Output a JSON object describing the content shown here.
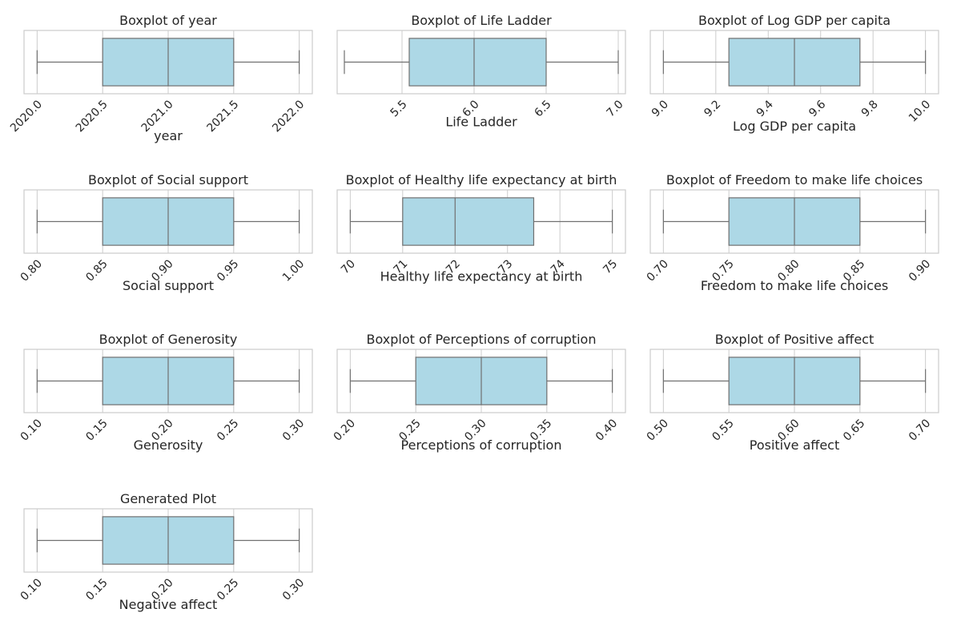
{
  "colors": {
    "box_fill": "#add8e6",
    "box_edge": "#707070",
    "grid": "#cccccc",
    "frame": "#cccccc",
    "text": "#262626",
    "background": "#ffffff"
  },
  "chart_data": [
    {
      "type": "boxplot",
      "title": "Boxplot of year",
      "xlabel": "year",
      "xlim": [
        2019.9,
        2022.1
      ],
      "ticks": [
        2020.0,
        2020.5,
        2021.0,
        2021.5,
        2022.0
      ],
      "tick_labels": [
        "2020.0",
        "2020.5",
        "2021.0",
        "2021.5",
        "2022.0"
      ],
      "min": 2020.0,
      "q1": 2020.5,
      "median": 2021.0,
      "q3": 2021.5,
      "max": 2022.0,
      "grid": true,
      "orientation": "horizontal"
    },
    {
      "type": "boxplot",
      "title": "Boxplot of Life Ladder",
      "xlabel": "Life Ladder",
      "xlim": [
        5.05,
        7.05
      ],
      "ticks": [
        5.5,
        6.0,
        6.5,
        7.0
      ],
      "tick_labels": [
        "5.5",
        "6.0",
        "6.5",
        "7.0"
      ],
      "min": 5.1,
      "q1": 5.55,
      "median": 6.0,
      "q3": 6.5,
      "max": 7.0,
      "grid": true,
      "orientation": "horizontal"
    },
    {
      "type": "boxplot",
      "title": "Boxplot of Log GDP per capita",
      "xlabel": "Log GDP per capita",
      "xlim": [
        8.95,
        10.05
      ],
      "ticks": [
        9.0,
        9.2,
        9.4,
        9.6,
        9.8,
        10.0
      ],
      "tick_labels": [
        "9.0",
        "9.2",
        "9.4",
        "9.6",
        "9.8",
        "10.0"
      ],
      "min": 9.0,
      "q1": 9.25,
      "median": 9.5,
      "q3": 9.75,
      "max": 10.0,
      "grid": true,
      "orientation": "horizontal"
    },
    {
      "type": "boxplot",
      "title": "Boxplot of Social support",
      "xlabel": "Social support",
      "xlim": [
        0.79,
        1.01
      ],
      "ticks": [
        0.8,
        0.85,
        0.9,
        0.95,
        1.0
      ],
      "tick_labels": [
        "0.80",
        "0.85",
        "0.90",
        "0.95",
        "1.00"
      ],
      "min": 0.8,
      "q1": 0.85,
      "median": 0.9,
      "q3": 0.95,
      "max": 1.0,
      "grid": true,
      "orientation": "horizontal"
    },
    {
      "type": "boxplot",
      "title": "Boxplot of Healthy life expectancy at birth",
      "xlabel": "Healthy life expectancy at birth",
      "xlim": [
        69.75,
        75.25
      ],
      "ticks": [
        70,
        71,
        72,
        73,
        74,
        75
      ],
      "tick_labels": [
        "70",
        "71",
        "72",
        "73",
        "74",
        "75"
      ],
      "min": 70,
      "q1": 71,
      "median": 72,
      "q3": 73.5,
      "max": 75,
      "grid": true,
      "orientation": "horizontal"
    },
    {
      "type": "boxplot",
      "title": "Boxplot of Freedom to make life choices",
      "xlabel": "Freedom to make life choices",
      "xlim": [
        0.69,
        0.91
      ],
      "ticks": [
        0.7,
        0.75,
        0.8,
        0.85,
        0.9
      ],
      "tick_labels": [
        "0.70",
        "0.75",
        "0.80",
        "0.85",
        "0.90"
      ],
      "min": 0.7,
      "q1": 0.75,
      "median": 0.8,
      "q3": 0.85,
      "max": 0.9,
      "grid": true,
      "orientation": "horizontal"
    },
    {
      "type": "boxplot",
      "title": "Boxplot of Generosity",
      "xlabel": "Generosity",
      "xlim": [
        0.09,
        0.31
      ],
      "ticks": [
        0.1,
        0.15,
        0.2,
        0.25,
        0.3
      ],
      "tick_labels": [
        "0.10",
        "0.15",
        "0.20",
        "0.25",
        "0.30"
      ],
      "min": 0.1,
      "q1": 0.15,
      "median": 0.2,
      "q3": 0.25,
      "max": 0.3,
      "grid": true,
      "orientation": "horizontal"
    },
    {
      "type": "boxplot",
      "title": "Boxplot of Perceptions of corruption",
      "xlabel": "Perceptions of corruption",
      "xlim": [
        0.19,
        0.41
      ],
      "ticks": [
        0.2,
        0.25,
        0.3,
        0.35,
        0.4
      ],
      "tick_labels": [
        "0.20",
        "0.25",
        "0.30",
        "0.35",
        "0.40"
      ],
      "min": 0.2,
      "q1": 0.25,
      "median": 0.3,
      "q3": 0.35,
      "max": 0.4,
      "grid": true,
      "orientation": "horizontal"
    },
    {
      "type": "boxplot",
      "title": "Boxplot of Positive affect",
      "xlabel": "Positive affect",
      "xlim": [
        0.49,
        0.71
      ],
      "ticks": [
        0.5,
        0.55,
        0.6,
        0.65,
        0.7
      ],
      "tick_labels": [
        "0.50",
        "0.55",
        "0.60",
        "0.65",
        "0.70"
      ],
      "min": 0.5,
      "q1": 0.55,
      "median": 0.6,
      "q3": 0.65,
      "max": 0.7,
      "grid": true,
      "orientation": "horizontal"
    },
    {
      "type": "boxplot",
      "title": "Generated Plot",
      "xlabel": "Negative affect",
      "xlim": [
        0.09,
        0.31
      ],
      "ticks": [
        0.1,
        0.15,
        0.2,
        0.25,
        0.3
      ],
      "tick_labels": [
        "0.10",
        "0.15",
        "0.20",
        "0.25",
        "0.30"
      ],
      "min": 0.1,
      "q1": 0.15,
      "median": 0.2,
      "q3": 0.25,
      "max": 0.3,
      "grid": true,
      "orientation": "horizontal"
    }
  ]
}
